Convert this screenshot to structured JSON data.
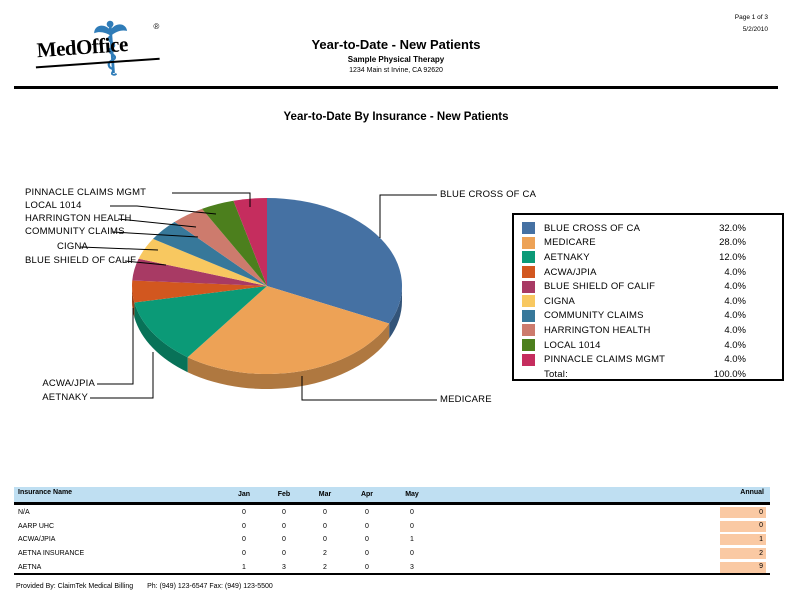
{
  "header": {
    "logo_text": "MedOffice",
    "logo_reg": "®",
    "title": "Year-to-Date - New Patients",
    "subtitle": "Sample Physical Therapy",
    "address": "1234 Main st Irvine, CA  92620",
    "page_info": "Page 1 of 3",
    "date": "5/2/2010"
  },
  "chart_data": {
    "type": "pie",
    "style": "3d-pie",
    "title": "Year-to-Date By Insurance - New Patients",
    "legend_position": "right",
    "value_format": "percent",
    "series": [
      {
        "label": "BLUE CROSS OF CA",
        "value": 32.0,
        "color": "#4571A3"
      },
      {
        "label": "MEDICARE",
        "value": 28.0,
        "color": "#EDA256"
      },
      {
        "label": "AETNAKY",
        "value": 12.0,
        "color": "#0B9A77"
      },
      {
        "label": "ACWA/JPIA",
        "value": 4.0,
        "color": "#D2571F"
      },
      {
        "label": "BLUE SHIELD OF CALIF",
        "value": 4.0,
        "color": "#A83A64"
      },
      {
        "label": "CIGNA",
        "value": 4.0,
        "color": "#F8C860"
      },
      {
        "label": "COMMUNITY CLAIMS",
        "value": 4.0,
        "color": "#37789A"
      },
      {
        "label": "HARRINGTON HEALTH",
        "value": 4.0,
        "color": "#CD7B6D"
      },
      {
        "label": "LOCAL 1014",
        "value": 4.0,
        "color": "#4C7F1D"
      },
      {
        "label": "PINNACLE CLAIMS MGMT",
        "value": 4.0,
        "color": "#C52D5E"
      }
    ],
    "total_label": "Total:",
    "total_value": 100.0
  },
  "table": {
    "columns": [
      "Insurance Name",
      "Jan",
      "Feb",
      "Mar",
      "Apr",
      "May",
      "Annual"
    ],
    "header_bg": "#BFDFF2",
    "annual_bg": "#FAC9A3",
    "rows": [
      {
        "name": "N/A",
        "values": [
          0,
          0,
          0,
          0,
          0
        ],
        "annual": 0
      },
      {
        "name": "AARP UHC",
        "values": [
          0,
          0,
          0,
          0,
          0
        ],
        "annual": 0
      },
      {
        "name": "ACWA/JPIA",
        "values": [
          0,
          0,
          0,
          0,
          1
        ],
        "annual": 1
      },
      {
        "name": "AETNA INSURANCE",
        "values": [
          0,
          0,
          2,
          0,
          0
        ],
        "annual": 2
      },
      {
        "name": "AETNA",
        "values": [
          1,
          3,
          2,
          0,
          3
        ],
        "annual": 9
      }
    ]
  },
  "footer": {
    "provided_by": "Provided By: ClaimTek Medical Billing",
    "contact": "Ph: (949) 123-6547 Fax: (949) 123-5500"
  }
}
